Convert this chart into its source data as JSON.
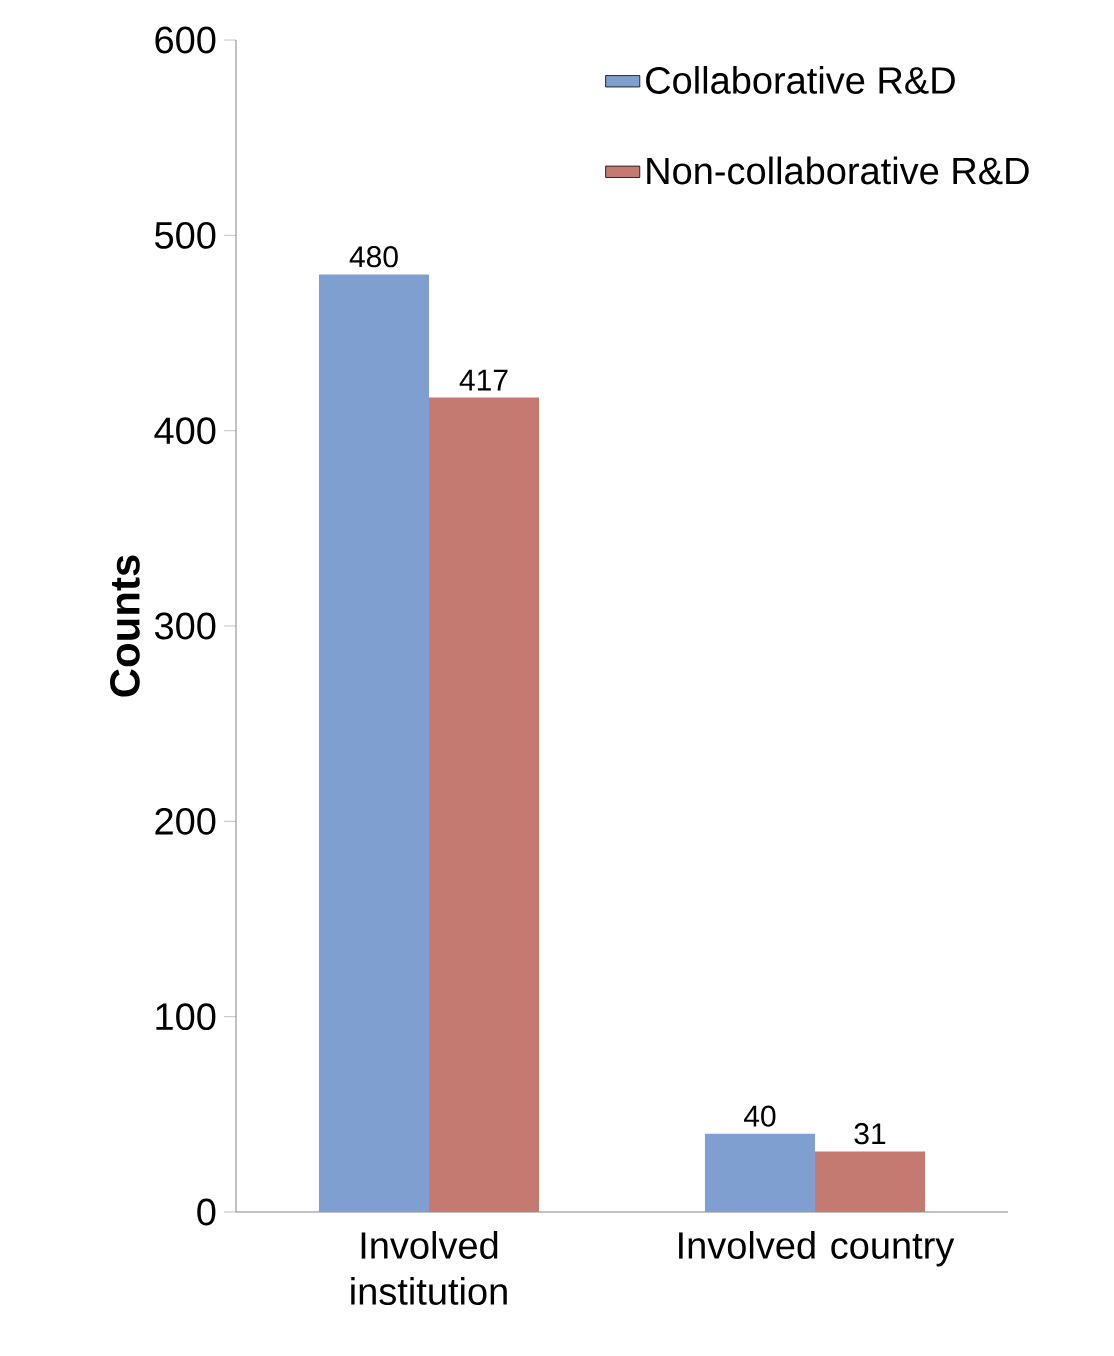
{
  "chart_data": {
    "type": "bar",
    "ylabel": "Counts",
    "categories": [
      "Involved institution",
      "Involved country"
    ],
    "series": [
      {
        "name": "Collaborative R&D",
        "color": "#809fd1",
        "values": [
          480,
          40
        ]
      },
      {
        "name": "Non-collaborative R&D",
        "color": "#c47a71",
        "values": [
          417,
          31
        ]
      }
    ],
    "ylim": [
      0,
      600
    ],
    "yticks": [
      0,
      100,
      200,
      300,
      400,
      500,
      600
    ],
    "data_labels": true,
    "legend": "top right",
    "grid": false
  }
}
